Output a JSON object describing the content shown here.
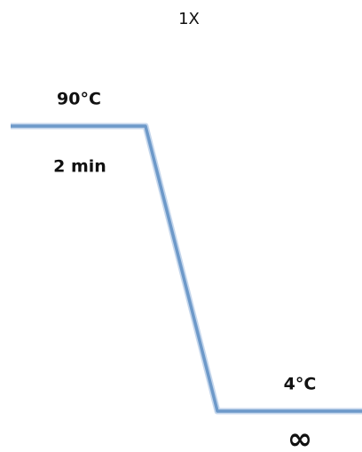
{
  "cycles": "1X",
  "steps": [
    {
      "temperature": "90°C",
      "duration": "2 min"
    },
    {
      "temperature": "4°C",
      "duration": "∞"
    }
  ]
}
